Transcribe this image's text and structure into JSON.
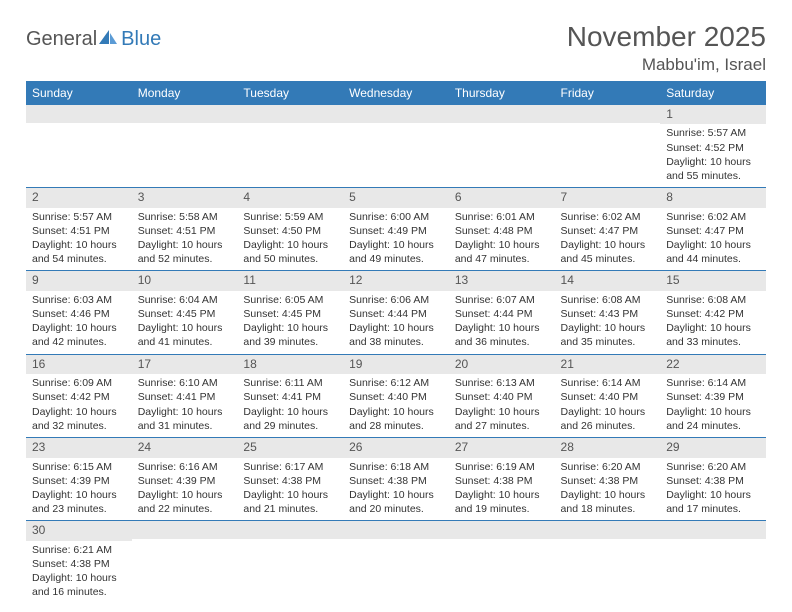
{
  "logo": {
    "text1": "General",
    "text2": "Blue"
  },
  "title": "November 2025",
  "location": "Mabbu'im, Israel",
  "colors": {
    "header_bg": "#337ab7",
    "header_text": "#ffffff",
    "daynum_bg": "#e8e8e8",
    "rule": "#337ab7",
    "title_color": "#555555",
    "body_text": "#333333"
  },
  "typography": {
    "title_fontsize": 28,
    "location_fontsize": 17,
    "header_fontsize": 12,
    "daynum_fontsize": 12,
    "body_fontsize": 10.5
  },
  "day_headers": [
    "Sunday",
    "Monday",
    "Tuesday",
    "Wednesday",
    "Thursday",
    "Friday",
    "Saturday"
  ],
  "weeks": [
    [
      {
        "n": "",
        "l": []
      },
      {
        "n": "",
        "l": []
      },
      {
        "n": "",
        "l": []
      },
      {
        "n": "",
        "l": []
      },
      {
        "n": "",
        "l": []
      },
      {
        "n": "",
        "l": []
      },
      {
        "n": "1",
        "l": [
          "Sunrise: 5:57 AM",
          "Sunset: 4:52 PM",
          "Daylight: 10 hours and 55 minutes."
        ]
      }
    ],
    [
      {
        "n": "2",
        "l": [
          "Sunrise: 5:57 AM",
          "Sunset: 4:51 PM",
          "Daylight: 10 hours and 54 minutes."
        ]
      },
      {
        "n": "3",
        "l": [
          "Sunrise: 5:58 AM",
          "Sunset: 4:51 PM",
          "Daylight: 10 hours and 52 minutes."
        ]
      },
      {
        "n": "4",
        "l": [
          "Sunrise: 5:59 AM",
          "Sunset: 4:50 PM",
          "Daylight: 10 hours and 50 minutes."
        ]
      },
      {
        "n": "5",
        "l": [
          "Sunrise: 6:00 AM",
          "Sunset: 4:49 PM",
          "Daylight: 10 hours and 49 minutes."
        ]
      },
      {
        "n": "6",
        "l": [
          "Sunrise: 6:01 AM",
          "Sunset: 4:48 PM",
          "Daylight: 10 hours and 47 minutes."
        ]
      },
      {
        "n": "7",
        "l": [
          "Sunrise: 6:02 AM",
          "Sunset: 4:47 PM",
          "Daylight: 10 hours and 45 minutes."
        ]
      },
      {
        "n": "8",
        "l": [
          "Sunrise: 6:02 AM",
          "Sunset: 4:47 PM",
          "Daylight: 10 hours and 44 minutes."
        ]
      }
    ],
    [
      {
        "n": "9",
        "l": [
          "Sunrise: 6:03 AM",
          "Sunset: 4:46 PM",
          "Daylight: 10 hours and 42 minutes."
        ]
      },
      {
        "n": "10",
        "l": [
          "Sunrise: 6:04 AM",
          "Sunset: 4:45 PM",
          "Daylight: 10 hours and 41 minutes."
        ]
      },
      {
        "n": "11",
        "l": [
          "Sunrise: 6:05 AM",
          "Sunset: 4:45 PM",
          "Daylight: 10 hours and 39 minutes."
        ]
      },
      {
        "n": "12",
        "l": [
          "Sunrise: 6:06 AM",
          "Sunset: 4:44 PM",
          "Daylight: 10 hours and 38 minutes."
        ]
      },
      {
        "n": "13",
        "l": [
          "Sunrise: 6:07 AM",
          "Sunset: 4:44 PM",
          "Daylight: 10 hours and 36 minutes."
        ]
      },
      {
        "n": "14",
        "l": [
          "Sunrise: 6:08 AM",
          "Sunset: 4:43 PM",
          "Daylight: 10 hours and 35 minutes."
        ]
      },
      {
        "n": "15",
        "l": [
          "Sunrise: 6:08 AM",
          "Sunset: 4:42 PM",
          "Daylight: 10 hours and 33 minutes."
        ]
      }
    ],
    [
      {
        "n": "16",
        "l": [
          "Sunrise: 6:09 AM",
          "Sunset: 4:42 PM",
          "Daylight: 10 hours and 32 minutes."
        ]
      },
      {
        "n": "17",
        "l": [
          "Sunrise: 6:10 AM",
          "Sunset: 4:41 PM",
          "Daylight: 10 hours and 31 minutes."
        ]
      },
      {
        "n": "18",
        "l": [
          "Sunrise: 6:11 AM",
          "Sunset: 4:41 PM",
          "Daylight: 10 hours and 29 minutes."
        ]
      },
      {
        "n": "19",
        "l": [
          "Sunrise: 6:12 AM",
          "Sunset: 4:40 PM",
          "Daylight: 10 hours and 28 minutes."
        ]
      },
      {
        "n": "20",
        "l": [
          "Sunrise: 6:13 AM",
          "Sunset: 4:40 PM",
          "Daylight: 10 hours and 27 minutes."
        ]
      },
      {
        "n": "21",
        "l": [
          "Sunrise: 6:14 AM",
          "Sunset: 4:40 PM",
          "Daylight: 10 hours and 26 minutes."
        ]
      },
      {
        "n": "22",
        "l": [
          "Sunrise: 6:14 AM",
          "Sunset: 4:39 PM",
          "Daylight: 10 hours and 24 minutes."
        ]
      }
    ],
    [
      {
        "n": "23",
        "l": [
          "Sunrise: 6:15 AM",
          "Sunset: 4:39 PM",
          "Daylight: 10 hours and 23 minutes."
        ]
      },
      {
        "n": "24",
        "l": [
          "Sunrise: 6:16 AM",
          "Sunset: 4:39 PM",
          "Daylight: 10 hours and 22 minutes."
        ]
      },
      {
        "n": "25",
        "l": [
          "Sunrise: 6:17 AM",
          "Sunset: 4:38 PM",
          "Daylight: 10 hours and 21 minutes."
        ]
      },
      {
        "n": "26",
        "l": [
          "Sunrise: 6:18 AM",
          "Sunset: 4:38 PM",
          "Daylight: 10 hours and 20 minutes."
        ]
      },
      {
        "n": "27",
        "l": [
          "Sunrise: 6:19 AM",
          "Sunset: 4:38 PM",
          "Daylight: 10 hours and 19 minutes."
        ]
      },
      {
        "n": "28",
        "l": [
          "Sunrise: 6:20 AM",
          "Sunset: 4:38 PM",
          "Daylight: 10 hours and 18 minutes."
        ]
      },
      {
        "n": "29",
        "l": [
          "Sunrise: 6:20 AM",
          "Sunset: 4:38 PM",
          "Daylight: 10 hours and 17 minutes."
        ]
      }
    ],
    [
      {
        "n": "30",
        "l": [
          "Sunrise: 6:21 AM",
          "Sunset: 4:38 PM",
          "Daylight: 10 hours and 16 minutes."
        ]
      },
      {
        "n": "",
        "l": []
      },
      {
        "n": "",
        "l": []
      },
      {
        "n": "",
        "l": []
      },
      {
        "n": "",
        "l": []
      },
      {
        "n": "",
        "l": []
      },
      {
        "n": "",
        "l": []
      }
    ]
  ]
}
